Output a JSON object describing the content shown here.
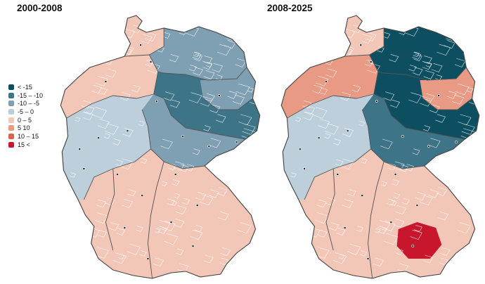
{
  "titles": {
    "left": "2000-2008",
    "right": "2008-2025"
  },
  "legend": {
    "items": [
      {
        "label": "< -15",
        "color": "#0d4f61"
      },
      {
        "label": "-15 – -10",
        "color": "#3e7488"
      },
      {
        "label": "-10 – -5",
        "color": "#7f9fb2"
      },
      {
        "label": "-5 – 0",
        "color": "#bccfdb"
      },
      {
        "label": "0 – 5",
        "color": "#f3c7b8"
      },
      {
        "label": "5 10",
        "color": "#e99a84"
      },
      {
        "label": "10 – 15",
        "color": "#d9634c"
      },
      {
        "label": "15 <",
        "color": "#c8162c"
      }
    ]
  },
  "maps": [
    {
      "period": "2000-2008",
      "regions": [
        {
          "id": "north-west",
          "class": 4
        },
        {
          "id": "schleswig",
          "class": 4
        },
        {
          "id": "north-east",
          "class": 2
        },
        {
          "id": "berlin-ring",
          "class": 2
        },
        {
          "id": "east-mid",
          "class": 1
        },
        {
          "id": "east-south",
          "class": 2
        },
        {
          "id": "west-central",
          "class": 3
        },
        {
          "id": "south-west",
          "class": 4
        },
        {
          "id": "south-east",
          "class": 4
        },
        {
          "id": "munich",
          "class": 4
        }
      ]
    },
    {
      "period": "2008-2025",
      "regions": [
        {
          "id": "north-west",
          "class": 5
        },
        {
          "id": "schleswig",
          "class": 4
        },
        {
          "id": "north-east",
          "class": 0
        },
        {
          "id": "berlin-ring",
          "class": 5
        },
        {
          "id": "east-mid",
          "class": 0
        },
        {
          "id": "east-south",
          "class": 1
        },
        {
          "id": "west-central",
          "class": 3
        },
        {
          "id": "south-west",
          "class": 4
        },
        {
          "id": "south-east",
          "class": 4
        },
        {
          "id": "munich",
          "class": 7
        }
      ]
    }
  ]
}
